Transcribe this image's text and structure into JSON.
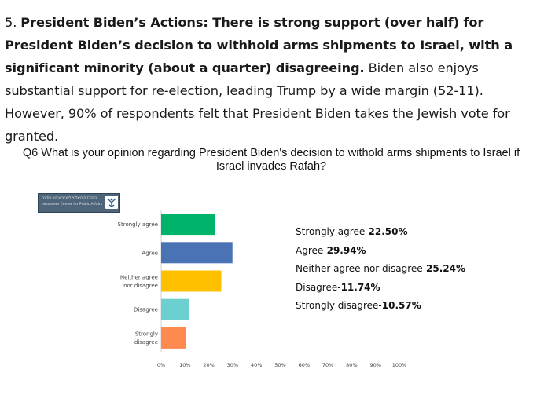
{
  "article": {
    "number": "5.",
    "bold": "President Biden’s Actions: There is strong support (over half) for President Biden’s decision to withhold arms shipments to Israel, with a significant minority (about a quarter) disagreeing.",
    "rest": "Biden also enjoys substantial support for re-election, leading Trump by a wide margin (52-11). However, 90% of respondents felt that President Biden takes the Jewish vote for granted."
  },
  "logo": {
    "line1": "המרכז הירושלמי לענייני ציבור ומדינה",
    "line2": "Jerusalem Center for Public Affairs",
    "icon": "jcpa-emblem-icon"
  },
  "chart_data": {
    "type": "bar",
    "orientation": "horizontal",
    "title": "Q6 What is your opinion regarding President Biden's decision to withold arms shipments to Israel if Israel invades Rafah?",
    "categories": [
      "Strongly agree",
      "Agree",
      "Neither agree nor disagree",
      "Disagree",
      "Strongly disagree"
    ],
    "category_lines": [
      [
        "Strongly agree"
      ],
      [
        "Agree"
      ],
      [
        "Neither agree",
        "nor disagree"
      ],
      [
        "Disagree"
      ],
      [
        "Strongly",
        "disagree"
      ]
    ],
    "values": [
      22.5,
      29.94,
      25.24,
      11.74,
      10.57
    ],
    "colors": [
      "#00b36b",
      "#4a73b5",
      "#ffc000",
      "#6ccfd0",
      "#ff8a4f"
    ],
    "xlim": [
      0,
      100
    ],
    "x_ticks": [
      "0%",
      "10%",
      "20%",
      "30%",
      "40%",
      "50%",
      "60%",
      "70%",
      "80%",
      "90%",
      "100%"
    ],
    "grid": false,
    "legend_entries": [
      {
        "label": "Strongly agree-",
        "pct": "22.50%"
      },
      {
        "label": "Agree-",
        "pct": "29.94%"
      },
      {
        "label": "Neither agree nor disagree-",
        "pct": "25.24%"
      },
      {
        "label": "Disagree-",
        "pct": "11.74%"
      },
      {
        "label": "Strongly disagree-",
        "pct": "10.57%"
      }
    ]
  }
}
